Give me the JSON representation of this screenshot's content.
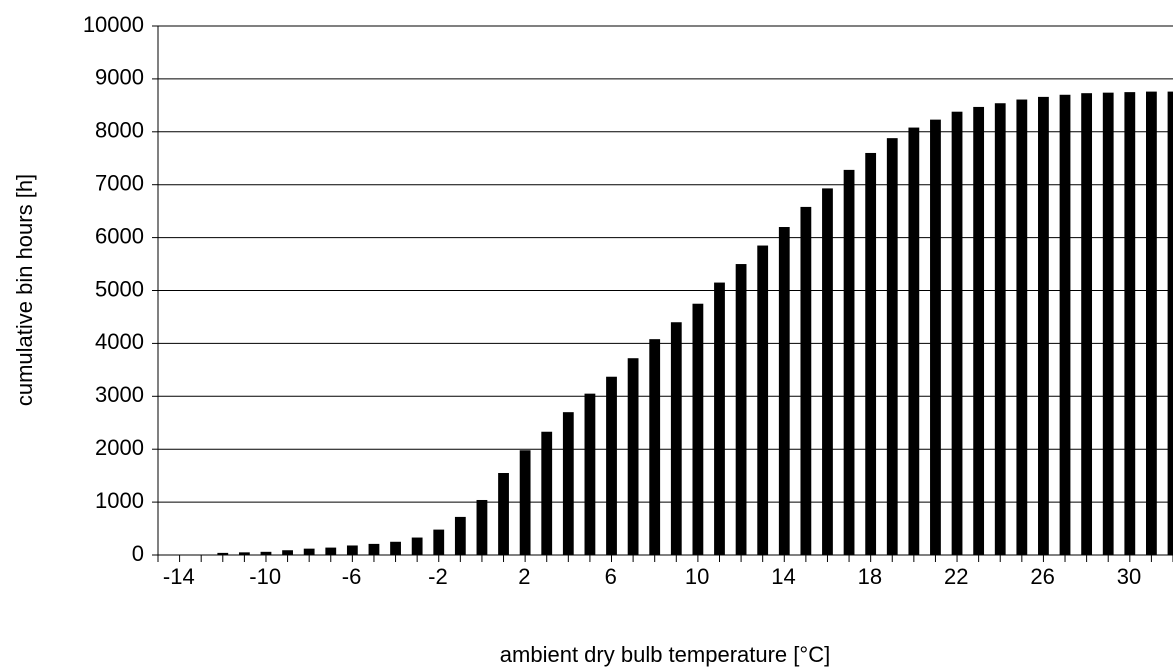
{
  "chart_data": {
    "type": "bar",
    "x_label": "ambient dry bulb temperature [°C]",
    "y_label": "cumulative bin hours [h]",
    "categories": [
      -14,
      null,
      null,
      null,
      -10,
      null,
      null,
      null,
      -6,
      null,
      null,
      null,
      -2,
      null,
      null,
      null,
      2,
      null,
      null,
      null,
      6,
      null,
      null,
      null,
      10,
      null,
      null,
      null,
      14,
      null,
      null,
      null,
      18,
      null,
      null,
      null,
      22,
      null,
      null,
      null,
      26,
      null,
      null,
      null,
      30,
      null,
      null
    ],
    "values": [
      0,
      0,
      40,
      50,
      60,
      90,
      120,
      140,
      180,
      210,
      250,
      330,
      480,
      720,
      1040,
      1550,
      1980,
      2330,
      2700,
      3050,
      3370,
      3720,
      4080,
      4400,
      4750,
      5150,
      5500,
      5850,
      6200,
      6580,
      6930,
      7280,
      7600,
      7880,
      8080,
      8230,
      8380,
      8470,
      8540,
      8610,
      8660,
      8700,
      8730,
      8740,
      8750,
      8760,
      8760
    ],
    "color": "#000000",
    "ylim": [
      0,
      10000
    ],
    "yticks": [
      0,
      1000,
      2000,
      3000,
      4000,
      5000,
      6000,
      7000,
      8000,
      9000,
      10000
    ],
    "grid": true
  }
}
